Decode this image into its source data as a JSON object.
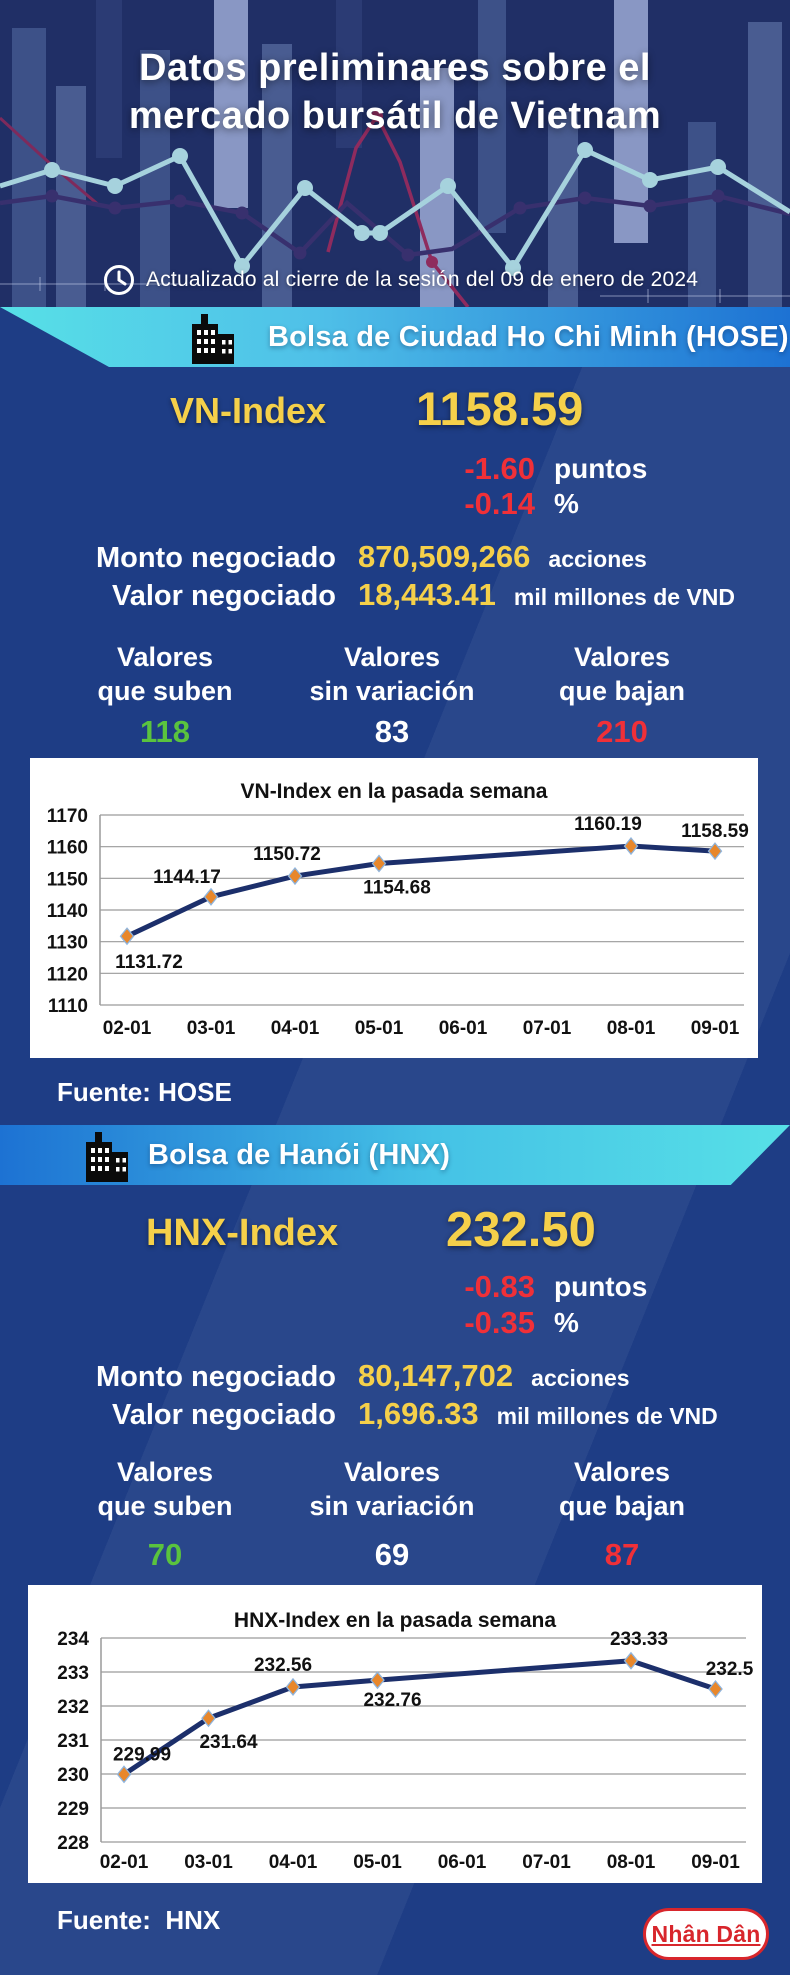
{
  "colors": {
    "page_bg": "#1e3d85",
    "hero_bg": "#202f66",
    "yellow": "#f5d04a",
    "red": "#f03038",
    "green": "#5ac33e",
    "banner_cyan": "#57e0e7",
    "banner_blue": "#1d72d3",
    "chart_line": "#1c2f6b",
    "chart_marker": "#e8872b",
    "logo_red": "#d8262c"
  },
  "icons": {
    "clock": "clock-icon",
    "building": "building-icon"
  },
  "header": {
    "title_line1": "Datos preliminares sobre el",
    "title_line2": "mercado bursátil de Vietnam",
    "updated": "Actualizado al cierre de la sesión del 09 de enero de 2024"
  },
  "hose": {
    "banner": "Bolsa de Ciudad Ho Chi Minh (HOSE)",
    "index_label": "VN-Index",
    "index_value": "1158.59",
    "change_points": "-1.60",
    "points_unit": "puntos",
    "change_percent": "-0.14",
    "percent_unit": "%",
    "volume_label": "Monto negociado",
    "volume_value": "870,509,266",
    "volume_unit": "acciones",
    "turnover_label": "Valor negociado",
    "turnover_value": "18,443.41",
    "turnover_unit": "mil millones de VND",
    "movers": [
      {
        "line1": "Valores",
        "line2": "que suben",
        "value": "118"
      },
      {
        "line1": "Valores",
        "line2": "sin variación",
        "value": "83"
      },
      {
        "line1": "Valores",
        "line2": "que bajan",
        "value": "210"
      }
    ],
    "source": "Fuente: HOSE"
  },
  "hnx": {
    "banner": "Bolsa de Hanói (HNX)",
    "index_label": "HNX-Index",
    "index_value": "232.50",
    "change_points": "-0.83",
    "points_unit": "puntos",
    "change_percent": "-0.35",
    "percent_unit": "%",
    "volume_label": "Monto negociado",
    "volume_value": "80,147,702",
    "volume_unit": "acciones",
    "turnover_label": "Valor negociado",
    "turnover_value": "1,696.33",
    "turnover_unit": "mil millones de VND",
    "movers": [
      {
        "line1": "Valores",
        "line2": "que suben",
        "value": "70"
      },
      {
        "line1": "Valores",
        "line2": "sin variación",
        "value": "69"
      },
      {
        "line1": "Valores",
        "line2": "que bajan",
        "value": "87"
      }
    ],
    "source": "Fuente:  HNX"
  },
  "footer": {
    "logo_text": "Nhân Dân"
  },
  "chart_data": [
    {
      "type": "line",
      "title": "VN-Index en la pasada semana",
      "categories": [
        "02-01",
        "03-01",
        "04-01",
        "05-01",
        "06-01",
        "07-01",
        "08-01",
        "09-01"
      ],
      "values": [
        1131.72,
        1144.17,
        1150.72,
        1154.68,
        null,
        null,
        1160.19,
        1158.59
      ],
      "ylim": [
        1110,
        1170
      ],
      "ystep": 10,
      "xlabel": "",
      "ylabel": "",
      "grid": true,
      "legend": false,
      "line_color": "#1c2f6b",
      "marker": "diamond",
      "marker_color": "#e8872b"
    },
    {
      "type": "line",
      "title": "HNX-Index en la pasada semana",
      "categories": [
        "02-01",
        "03-01",
        "04-01",
        "05-01",
        "06-01",
        "07-01",
        "08-01",
        "09-01"
      ],
      "values": [
        229.99,
        231.64,
        232.56,
        232.76,
        null,
        null,
        233.33,
        232.5
      ],
      "ylim": [
        228,
        234
      ],
      "ystep": 1,
      "xlabel": "",
      "ylabel": "",
      "grid": true,
      "legend": false,
      "line_color": "#1c2f6b",
      "marker": "diamond",
      "marker_color": "#e8872b"
    }
  ]
}
